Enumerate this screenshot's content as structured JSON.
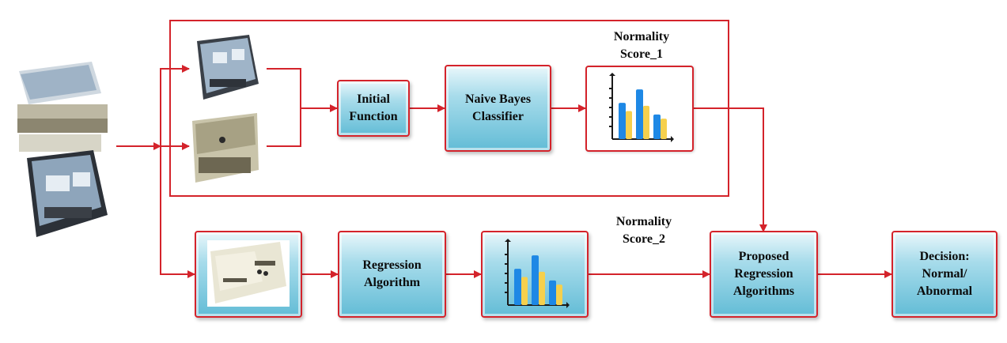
{
  "colors": {
    "arrow": "#d4232b",
    "bar_blue": "#1e88e5",
    "bar_yellow": "#f6d04d",
    "box_top": "#e9f7fb",
    "box_bottom": "#62bcd6"
  },
  "nodes": {
    "initial_function": {
      "line1": "Initial",
      "line2": "Function"
    },
    "naive_bayes": {
      "line1": "Naive Bayes",
      "line2": "Classifier"
    },
    "regression_algorithm": {
      "line1": "Regression",
      "line2": "Algorithm"
    },
    "proposed": {
      "line1": "Proposed",
      "line2": "Regression",
      "line3": "Algorithms"
    },
    "decision": {
      "line1": "Decision:",
      "line2": "Normal/",
      "line3": "Abnormal"
    }
  },
  "labels": {
    "score1": {
      "line1": "Normality",
      "line2": "Score_1"
    },
    "score2": {
      "line1": "Normality",
      "line2": "Score_2"
    }
  },
  "chart_icons": {
    "bar_pairs": [
      [
        0.62,
        0.48
      ],
      [
        0.85,
        0.57
      ],
      [
        0.42,
        0.35
      ]
    ]
  },
  "icons": {
    "input_stack": "video-frames-stack-icon",
    "frames_top": "surveillance-frames-icon",
    "frame_single": "surveillance-frame-icon",
    "chart": "bar-chart-icon"
  }
}
